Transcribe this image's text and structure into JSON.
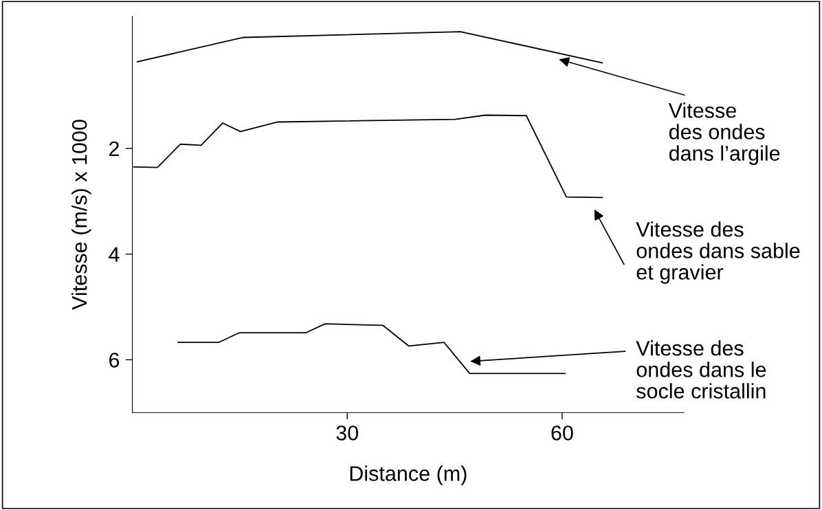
{
  "chart_data": {
    "type": "line",
    "xlabel": "Distance (m)",
    "ylabel": "Vitesse (m/s) x 1000",
    "xlim": [
      0,
      77
    ],
    "xticks": [
      30,
      60
    ],
    "ylim": [
      7,
      -0.5
    ],
    "yticks": [
      2,
      4,
      6
    ],
    "grid": false,
    "legend": false,
    "marker": "none",
    "line_style": "solid",
    "series": [
      {
        "name": "Vitesse\ndes ondes\ndans l’argile",
        "color": "#000000",
        "x": [
          0.7,
          15.5,
          45.8,
          65.6
        ],
        "values": [
          0.36,
          -0.1,
          -0.21,
          0.38
        ]
      },
      {
        "name": "Vitesse des\nondes dans sable\net gravier",
        "color": "#000000",
        "x": [
          0.2,
          3.5,
          6.7,
          9.6,
          12.6,
          15.1,
          20.3,
          45.1,
          49.3,
          55,
          60.6,
          65.6
        ],
        "values": [
          2.35,
          2.36,
          1.92,
          1.94,
          1.52,
          1.68,
          1.5,
          1.45,
          1.37,
          1.38,
          2.92,
          2.93
        ]
      },
      {
        "name": "Vitesse des\nondes dans le\nsocle cristallin",
        "color": "#000000",
        "x": [
          6.4,
          12.1,
          14.9,
          24.2,
          26.9,
          35,
          38.6,
          43.5,
          47.1,
          60.4
        ],
        "values": [
          5.67,
          5.67,
          5.49,
          5.49,
          5.32,
          5.35,
          5.74,
          5.67,
          6.26,
          6.26
        ]
      }
    ]
  }
}
